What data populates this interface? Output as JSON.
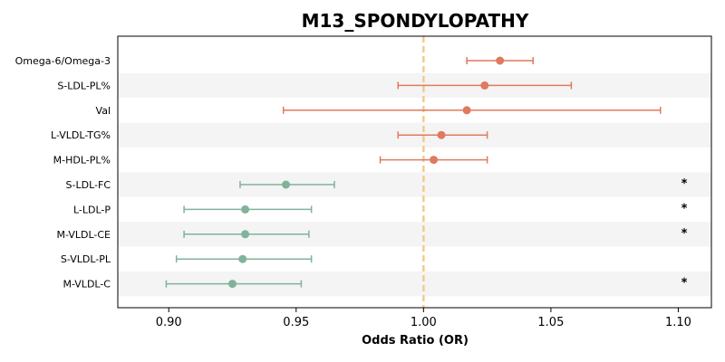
{
  "chart_data": {
    "type": "forest",
    "title": "M13_SPONDYLOPATHY",
    "xlabel": "Odds Ratio (OR)",
    "xlim": [
      0.88,
      1.113
    ],
    "xticks": [
      0.9,
      0.95,
      1.0,
      1.05,
      1.1
    ],
    "xtick_labels": [
      "0.90",
      "0.95",
      "1.00",
      "1.05",
      "1.10"
    ],
    "reference_line": 1.0,
    "colors": {
      "positive": "#e07a5f",
      "negative": "#81b29a",
      "reference": "#f2cc8f",
      "band": "#f4f4f4"
    },
    "rows": [
      {
        "label": "Omega-6/Omega-3",
        "or": 1.03,
        "lower": 1.017,
        "upper": 1.043,
        "star": ""
      },
      {
        "label": "S-LDL-PL%",
        "or": 1.024,
        "lower": 0.99,
        "upper": 1.058,
        "star": ""
      },
      {
        "label": "Val",
        "or": 1.017,
        "lower": 0.945,
        "upper": 1.093,
        "star": ""
      },
      {
        "label": "L-VLDL-TG%",
        "or": 1.007,
        "lower": 0.99,
        "upper": 1.025,
        "star": ""
      },
      {
        "label": "M-HDL-PL%",
        "or": 1.004,
        "lower": 0.983,
        "upper": 1.025,
        "star": ""
      },
      {
        "label": "S-LDL-FC",
        "or": 0.946,
        "lower": 0.928,
        "upper": 0.965,
        "star": "*"
      },
      {
        "label": "L-LDL-P",
        "or": 0.93,
        "lower": 0.906,
        "upper": 0.956,
        "star": "*"
      },
      {
        "label": "M-VLDL-CE",
        "or": 0.93,
        "lower": 0.906,
        "upper": 0.955,
        "star": "*"
      },
      {
        "label": "S-VLDL-PL",
        "or": 0.929,
        "lower": 0.903,
        "upper": 0.956,
        "star": ""
      },
      {
        "label": "M-VLDL-C",
        "or": 0.925,
        "lower": 0.899,
        "upper": 0.952,
        "star": "*"
      }
    ]
  }
}
